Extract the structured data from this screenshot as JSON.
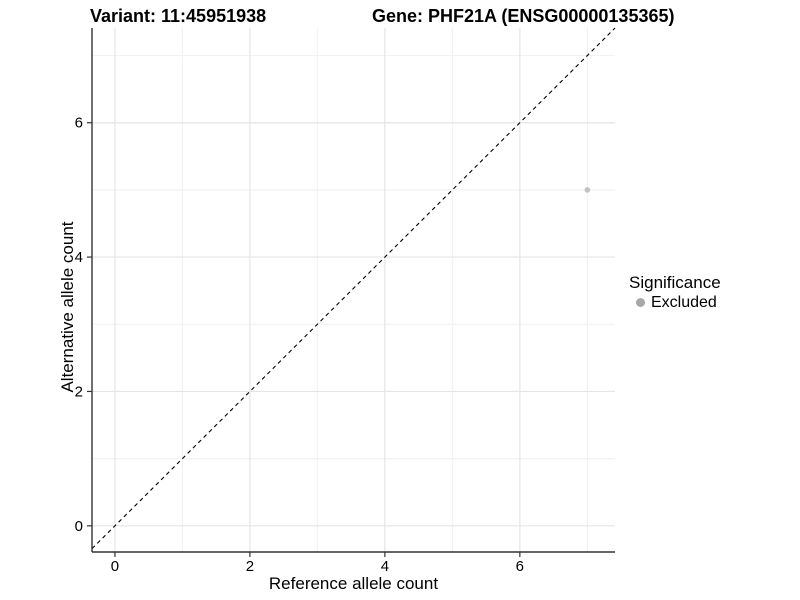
{
  "chart_data": {
    "type": "scatter",
    "titles": [
      "Variant: 11:45951938",
      "Gene: PHF21A (ENSG00000135365)"
    ],
    "xlabel": "Reference allele count",
    "ylabel": "Alternative allele count",
    "xlim": [
      -0.34,
      7.41
    ],
    "ylim": [
      -0.39,
      7.41
    ],
    "x_ticks": [
      0,
      2,
      4,
      6
    ],
    "y_ticks": [
      0,
      2,
      4,
      6
    ],
    "x_minor_ticks": [
      1,
      3,
      5,
      7
    ],
    "y_minor_ticks": [
      1,
      3,
      5,
      7
    ],
    "grid": "major+minor",
    "points": [
      {
        "x": 7,
        "y": 5,
        "series": "Excluded"
      }
    ],
    "reference_line": {
      "slope": 1,
      "intercept": 0,
      "style": "dashed"
    },
    "legend": {
      "title": "Significance",
      "position": "right",
      "items": [
        {
          "label": "Excluded",
          "color": "#a8a8a8"
        }
      ]
    }
  },
  "colors": {
    "grid_major": "#e5e5e5",
    "grid_minor": "#f2f2f2",
    "axis_line": "#333333",
    "tick_mark": "#333333",
    "tick_label": "#000000",
    "point": "#c2c2c2",
    "reference_line": "#000000",
    "background": "#ffffff"
  }
}
